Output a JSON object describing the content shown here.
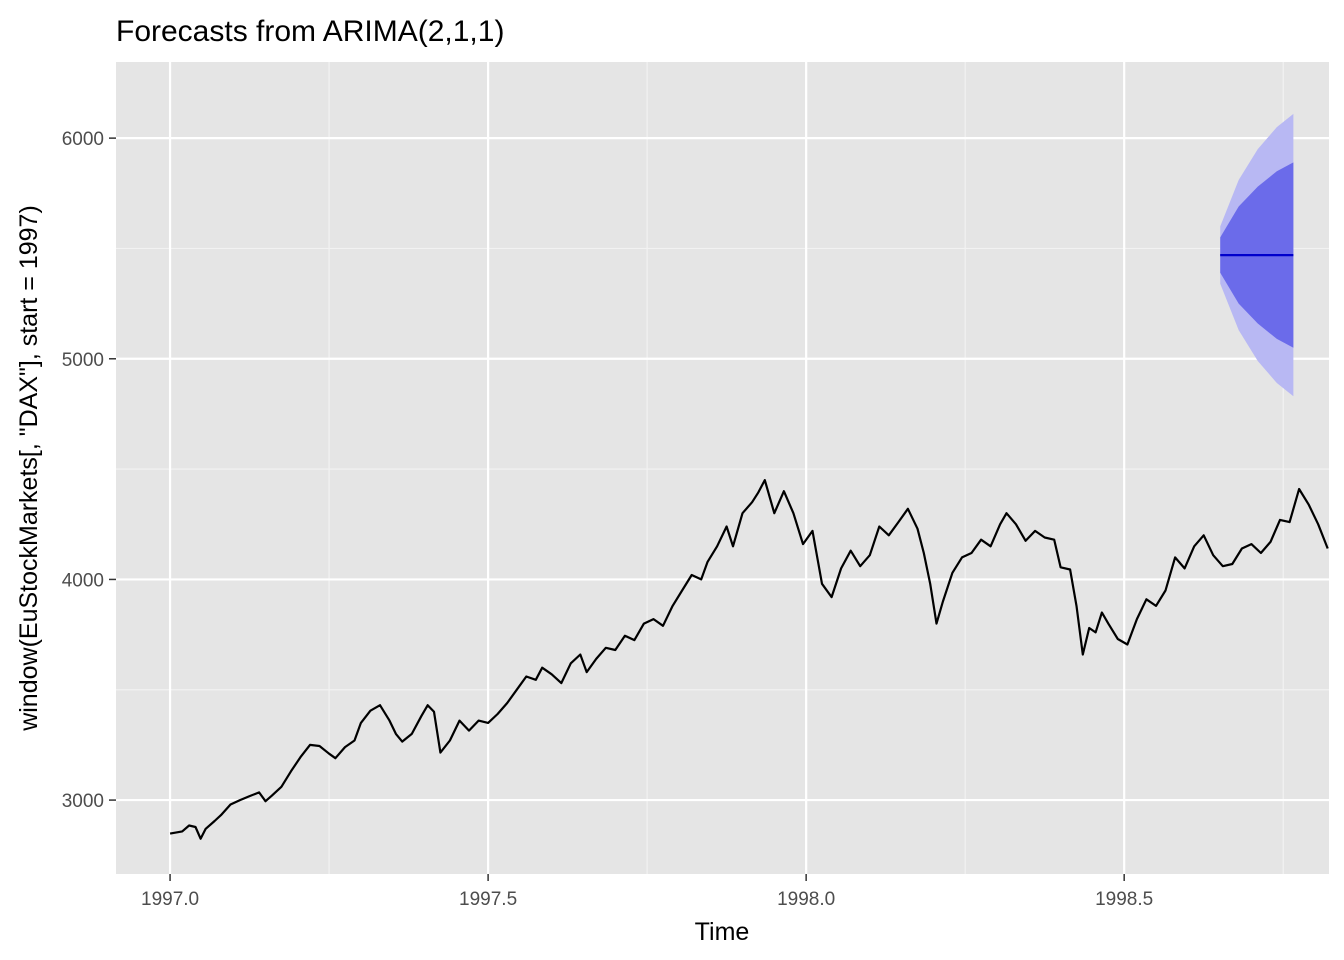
{
  "chart_data": {
    "type": "line",
    "title": "Forecasts from ARIMA(2,1,1)",
    "xlabel": "Time",
    "ylabel": "window(EuStockMarkets[, \"DAX\"], start = 1997)",
    "xlim": [
      1996.915,
      1998.822
    ],
    "ylim": [
      2665,
      6345
    ],
    "x_ticks": [
      {
        "value": 1997.0,
        "label": "1997.0"
      },
      {
        "value": 1997.5,
        "label": "1997.5"
      },
      {
        "value": 1998.0,
        "label": "1998.0"
      },
      {
        "value": 1998.5,
        "label": "1998.5"
      }
    ],
    "y_ticks": [
      {
        "value": 3000,
        "label": "3000"
      },
      {
        "value": 4000,
        "label": "4000"
      },
      {
        "value": 5000,
        "label": "5000"
      },
      {
        "value": 6000,
        "label": "6000"
      }
    ],
    "grid": true,
    "series": [
      {
        "role": "observed",
        "color": "#000000",
        "points": [
          [
            1997.0,
            2848
          ],
          [
            1997.019,
            2858
          ],
          [
            1997.03,
            2885
          ],
          [
            1997.04,
            2878
          ],
          [
            1997.048,
            2825
          ],
          [
            1997.056,
            2870
          ],
          [
            1997.07,
            2905
          ],
          [
            1997.08,
            2932
          ],
          [
            1997.095,
            2980
          ],
          [
            1997.11,
            3000
          ],
          [
            1997.125,
            3018
          ],
          [
            1997.14,
            3035
          ],
          [
            1997.15,
            2995
          ],
          [
            1997.16,
            3020
          ],
          [
            1997.175,
            3060
          ],
          [
            1997.19,
            3130
          ],
          [
            1997.205,
            3195
          ],
          [
            1997.22,
            3250
          ],
          [
            1997.235,
            3245
          ],
          [
            1997.25,
            3210
          ],
          [
            1997.26,
            3190
          ],
          [
            1997.275,
            3240
          ],
          [
            1997.29,
            3270
          ],
          [
            1997.3,
            3350
          ],
          [
            1997.315,
            3405
          ],
          [
            1997.33,
            3430
          ],
          [
            1997.345,
            3360
          ],
          [
            1997.355,
            3300
          ],
          [
            1997.365,
            3265
          ],
          [
            1997.38,
            3300
          ],
          [
            1997.395,
            3380
          ],
          [
            1997.405,
            3430
          ],
          [
            1997.415,
            3400
          ],
          [
            1997.425,
            3215
          ],
          [
            1997.44,
            3270
          ],
          [
            1997.455,
            3360
          ],
          [
            1997.47,
            3315
          ],
          [
            1997.485,
            3360
          ],
          [
            1997.5,
            3350
          ],
          [
            1997.515,
            3390
          ],
          [
            1997.53,
            3440
          ],
          [
            1997.545,
            3500
          ],
          [
            1997.56,
            3560
          ],
          [
            1997.575,
            3545
          ],
          [
            1997.585,
            3600
          ],
          [
            1997.6,
            3570
          ],
          [
            1997.615,
            3530
          ],
          [
            1997.63,
            3620
          ],
          [
            1997.645,
            3660
          ],
          [
            1997.655,
            3580
          ],
          [
            1997.67,
            3640
          ],
          [
            1997.685,
            3690
          ],
          [
            1997.7,
            3680
          ],
          [
            1997.715,
            3745
          ],
          [
            1997.73,
            3725
          ],
          [
            1997.745,
            3800
          ],
          [
            1997.76,
            3820
          ],
          [
            1997.775,
            3790
          ],
          [
            1997.79,
            3880
          ],
          [
            1997.805,
            3950
          ],
          [
            1997.82,
            4020
          ],
          [
            1997.835,
            4000
          ],
          [
            1997.845,
            4080
          ],
          [
            1997.86,
            4150
          ],
          [
            1997.875,
            4240
          ],
          [
            1997.885,
            4150
          ],
          [
            1997.9,
            4300
          ],
          [
            1997.915,
            4350
          ],
          [
            1997.925,
            4395
          ],
          [
            1997.935,
            4450
          ],
          [
            1997.95,
            4300
          ],
          [
            1997.965,
            4400
          ],
          [
            1997.98,
            4300
          ],
          [
            1997.995,
            4160
          ],
          [
            1998.01,
            4220
          ],
          [
            1998.025,
            3980
          ],
          [
            1998.04,
            3920
          ],
          [
            1998.055,
            4050
          ],
          [
            1998.07,
            4130
          ],
          [
            1998.085,
            4060
          ],
          [
            1998.1,
            4110
          ],
          [
            1998.115,
            4240
          ],
          [
            1998.13,
            4200
          ],
          [
            1998.145,
            4260
          ],
          [
            1998.16,
            4320
          ],
          [
            1998.175,
            4230
          ],
          [
            1998.185,
            4120
          ],
          [
            1998.195,
            3980
          ],
          [
            1998.205,
            3800
          ],
          [
            1998.215,
            3900
          ],
          [
            1998.23,
            4030
          ],
          [
            1998.245,
            4100
          ],
          [
            1998.26,
            4120
          ],
          [
            1998.275,
            4180
          ],
          [
            1998.29,
            4150
          ],
          [
            1998.305,
            4250
          ],
          [
            1998.315,
            4300
          ],
          [
            1998.33,
            4250
          ],
          [
            1998.345,
            4175
          ],
          [
            1998.36,
            4220
          ],
          [
            1998.375,
            4190
          ],
          [
            1998.39,
            4180
          ],
          [
            1998.4,
            4055
          ],
          [
            1998.415,
            4045
          ],
          [
            1998.425,
            3880
          ],
          [
            1998.435,
            3660
          ],
          [
            1998.445,
            3780
          ],
          [
            1998.455,
            3760
          ],
          [
            1998.465,
            3850
          ],
          [
            1998.475,
            3800
          ],
          [
            1998.49,
            3730
          ],
          [
            1998.505,
            3705
          ],
          [
            1998.52,
            3820
          ],
          [
            1998.535,
            3910
          ],
          [
            1998.55,
            3880
          ],
          [
            1998.565,
            3950
          ],
          [
            1998.58,
            4100
          ],
          [
            1998.595,
            4050
          ],
          [
            1998.61,
            4150
          ],
          [
            1998.625,
            4200
          ],
          [
            1998.64,
            4110
          ],
          [
            1998.655,
            4060
          ],
          [
            1998.67,
            4070
          ],
          [
            1998.685,
            4140
          ],
          [
            1998.7,
            4160
          ],
          [
            1998.715,
            4120
          ],
          [
            1998.73,
            4170
          ],
          [
            1998.745,
            4270
          ],
          [
            1998.76,
            4260
          ],
          [
            1998.775,
            4410
          ],
          [
            1998.79,
            4340
          ],
          [
            1998.805,
            4250
          ],
          [
            1998.82,
            4140
          ]
        ]
      }
    ],
    "forecast": {
      "color": "#0000cc",
      "band_80_color": "#6b6bea",
      "band_95_color": "#b8b8f3",
      "points": [
        {
          "x": 1998.651,
          "mean": 5470,
          "lo80": 5390,
          "hi80": 5550,
          "lo95": 5340,
          "hi95": 5600
        },
        {
          "x": 1998.68,
          "mean": 5470,
          "lo80": 5250,
          "hi80": 5690,
          "lo95": 5130,
          "hi95": 5810
        },
        {
          "x": 1998.71,
          "mean": 5470,
          "lo80": 5160,
          "hi80": 5780,
          "lo95": 4990,
          "hi95": 5950
        },
        {
          "x": 1998.74,
          "mean": 5470,
          "lo80": 5090,
          "hi80": 5850,
          "lo95": 4890,
          "hi95": 6050
        },
        {
          "x": 1998.766,
          "mean": 5470,
          "lo80": 5050,
          "hi80": 5890,
          "lo95": 4830,
          "hi95": 6110
        }
      ]
    }
  }
}
